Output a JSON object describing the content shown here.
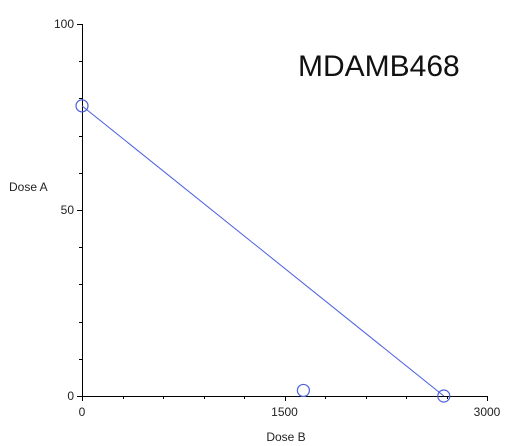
{
  "chart_data": {
    "type": "scatter",
    "title": "MDAMB468",
    "xlabel": "Dose B",
    "ylabel": "Dose A",
    "xlim": [
      0,
      3000
    ],
    "ylim": [
      0,
      100
    ],
    "xticks": [
      0,
      1500,
      3000
    ],
    "xtick_labels": [
      "0",
      "1500",
      "3000"
    ],
    "yticks": [
      0,
      50,
      100
    ],
    "ytick_labels": [
      "0",
      "50",
      "100"
    ],
    "grid": false,
    "legend": "none",
    "series": [
      {
        "kind": "points",
        "marker": "open-circle",
        "color": "#4a5fe0",
        "x": [
          0,
          1640,
          2680
        ],
        "y": [
          78,
          1.5,
          0
        ]
      },
      {
        "kind": "line",
        "color": "#4a5fe0",
        "x": [
          0,
          2680
        ],
        "y": [
          78,
          0
        ]
      }
    ]
  }
}
